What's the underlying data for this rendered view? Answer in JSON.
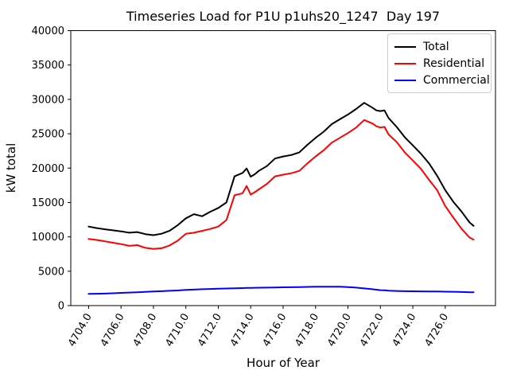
{
  "figure": {
    "background": "#ffffff",
    "axes_edge_color": "#000000"
  },
  "chart_data": {
    "type": "line",
    "title": "Timeseries Load for P1U p1uhs20_1247  Day 197",
    "xlabel": "Hour of Year",
    "ylabel": "kW total",
    "xlim": [
      4702.9,
      4729.1
    ],
    "ylim": [
      0,
      40000
    ],
    "grid": false,
    "legend_position": "upper right",
    "x": [
      4704,
      4704.5,
      4705,
      4705.5,
      4706,
      4706.5,
      4707,
      4707.5,
      4708,
      4708.5,
      4709,
      4709.5,
      4710,
      4710.5,
      4711,
      4711.5,
      4712,
      4712.5,
      4713,
      4713.5,
      4713.75,
      4714,
      4714.25,
      4714.5,
      4715,
      4715.5,
      4716,
      4716.5,
      4717,
      4717.5,
      4718,
      4718.5,
      4719,
      4719.5,
      4720,
      4720.5,
      4721,
      4721.5,
      4721.75,
      4722,
      4722.25,
      4722.5,
      4723,
      4723.5,
      4724,
      4724.5,
      4725,
      4725.5,
      4726,
      4726.5,
      4727,
      4727.5,
      4727.75
    ],
    "series": [
      {
        "name": "Total",
        "color": "#000000",
        "values": [
          11500,
          11280,
          11100,
          10950,
          10800,
          10600,
          10700,
          10400,
          10250,
          10450,
          10900,
          11700,
          12700,
          13300,
          13000,
          13650,
          14200,
          15000,
          18800,
          19300,
          19950,
          18750,
          19100,
          19600,
          20300,
          21400,
          21700,
          21900,
          22300,
          23400,
          24400,
          25300,
          26400,
          27100,
          27800,
          28600,
          29500,
          28800,
          28400,
          28300,
          28400,
          27300,
          26000,
          24500,
          23300,
          22100,
          20700,
          18900,
          16800,
          15100,
          13700,
          12100,
          11600
        ]
      },
      {
        "name": "Residential",
        "color": "#ff0000",
        "values": [
          9700,
          9550,
          9350,
          9150,
          8950,
          8700,
          8800,
          8400,
          8250,
          8350,
          8750,
          9450,
          10450,
          10600,
          10870,
          11150,
          11500,
          12450,
          16050,
          16350,
          17400,
          16150,
          16500,
          16900,
          17700,
          18800,
          19050,
          19250,
          19600,
          20700,
          21700,
          22600,
          23700,
          24400,
          25100,
          25900,
          27000,
          26500,
          26100,
          25900,
          26000,
          24900,
          23800,
          22300,
          21100,
          19900,
          18300,
          16800,
          14500,
          12800,
          11200,
          9900,
          9600
        ]
      },
      {
        "name": "Commercial",
        "color": "#0000ff",
        "values": [
          1700,
          1720,
          1750,
          1800,
          1850,
          1900,
          1950,
          2000,
          2050,
          2100,
          2150,
          2200,
          2280,
          2330,
          2380,
          2420,
          2460,
          2490,
          2520,
          2550,
          2565,
          2580,
          2590,
          2600,
          2620,
          2640,
          2660,
          2680,
          2700,
          2720,
          2740,
          2750,
          2760,
          2750,
          2700,
          2620,
          2500,
          2380,
          2320,
          2250,
          2220,
          2180,
          2130,
          2100,
          2080,
          2070,
          2060,
          2050,
          2030,
          2010,
          1980,
          1950,
          1930
        ]
      }
    ],
    "xticks": {
      "values": [
        4704,
        4706,
        4708,
        4710,
        4712,
        4714,
        4716,
        4718,
        4720,
        4722,
        4724,
        4726
      ],
      "labels": [
        "4704.0",
        "4706.0",
        "4708.0",
        "4710.0",
        "4712.0",
        "4714.0",
        "4716.0",
        "4718.0",
        "4720.0",
        "4722.0",
        "4724.0",
        "4726.0"
      ],
      "rotation": 60
    },
    "yticks": {
      "values": [
        0,
        5000,
        10000,
        15000,
        20000,
        25000,
        30000,
        35000,
        40000
      ],
      "labels": [
        "0",
        "5000",
        "10000",
        "15000",
        "20000",
        "25000",
        "30000",
        "35000",
        "40000"
      ]
    }
  }
}
